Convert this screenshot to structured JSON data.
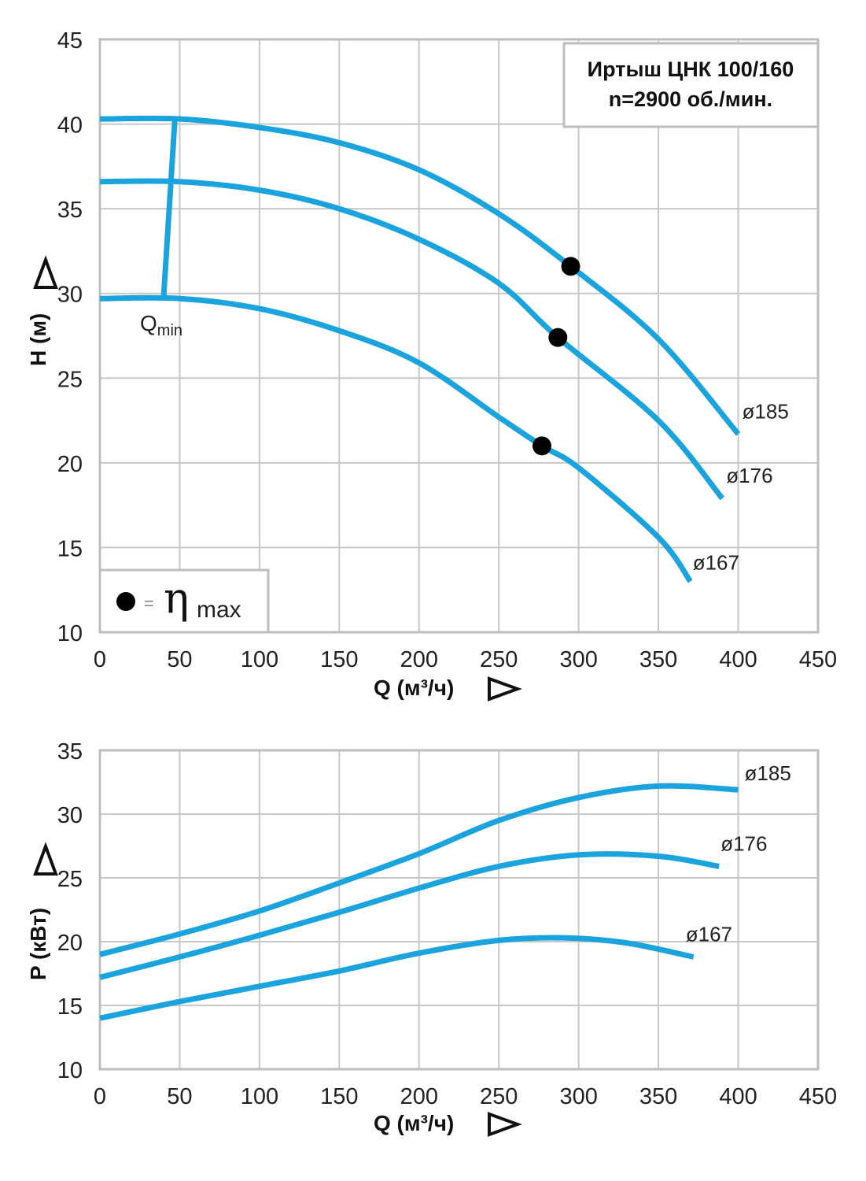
{
  "colors": {
    "curve": "#1aa3dd",
    "grid": "#c8c8c8",
    "frame": "#bdbdbd",
    "marker": "#000000"
  },
  "chart_data": [
    {
      "type": "line",
      "title": "Иртыш ЦНК 100/160",
      "subtitle": "n=2900 об./мин.",
      "xlabel": "Q (м³/ч)",
      "ylabel": "H (м)",
      "xlim": [
        0,
        450
      ],
      "ylim": [
        10,
        45
      ],
      "x_ticks": [
        "0",
        "50",
        "100",
        "150",
        "200",
        "250",
        "300",
        "350",
        "400",
        "450"
      ],
      "y_ticks": [
        "10",
        "15",
        "20",
        "25",
        "30",
        "35",
        "40",
        "45"
      ],
      "grid": true,
      "series": [
        {
          "name": "ø185",
          "points": [
            [
              0,
              40.3
            ],
            [
              50,
              40.3
            ],
            [
              100,
              39.8
            ],
            [
              150,
              38.9
            ],
            [
              200,
              37.3
            ],
            [
              250,
              34.7
            ],
            [
              295,
              31.6
            ],
            [
              350,
              27.3
            ],
            [
              400,
              21.7
            ]
          ]
        },
        {
          "name": "ø176",
          "points": [
            [
              0,
              36.6
            ],
            [
              50,
              36.6
            ],
            [
              100,
              36.1
            ],
            [
              150,
              35
            ],
            [
              200,
              33.2
            ],
            [
              250,
              30.6
            ],
            [
              287,
              27.4
            ],
            [
              350,
              22.5
            ],
            [
              390,
              17.9
            ]
          ]
        },
        {
          "name": "ø167",
          "points": [
            [
              0,
              29.7
            ],
            [
              50,
              29.7
            ],
            [
              100,
              29.1
            ],
            [
              150,
              27.8
            ],
            [
              200,
              25.9
            ],
            [
              250,
              22.7
            ],
            [
              277,
              21
            ],
            [
              300,
              19.7
            ],
            [
              350,
              15.6
            ],
            [
              370,
              13
            ]
          ]
        }
      ],
      "efficiency_max_points": [
        [
          295,
          31.6
        ],
        [
          287,
          27.4
        ],
        [
          277,
          21
        ]
      ],
      "qmin_line": {
        "label_main": "Q",
        "label_sub": "min",
        "points": [
          [
            40,
            29.9
          ],
          [
            47,
            40.3
          ]
        ]
      },
      "legend": {
        "symbol": "●",
        "equals": "=",
        "eta": "η",
        "sub": "max"
      }
    },
    {
      "type": "line",
      "xlabel": "Q (м³/ч)",
      "ylabel": "P (кВт)",
      "xlim": [
        0,
        450
      ],
      "ylim": [
        10,
        35
      ],
      "x_ticks": [
        "0",
        "50",
        "100",
        "150",
        "200",
        "250",
        "300",
        "350",
        "400",
        "450"
      ],
      "y_ticks": [
        "10",
        "15",
        "20",
        "25",
        "30",
        "35"
      ],
      "grid": true,
      "series": [
        {
          "name": "ø185",
          "points": [
            [
              0,
              19
            ],
            [
              50,
              20.6
            ],
            [
              100,
              22.4
            ],
            [
              150,
              24.6
            ],
            [
              200,
              26.9
            ],
            [
              250,
              29.5
            ],
            [
              300,
              31.3
            ],
            [
              350,
              32.2
            ],
            [
              400,
              31.9
            ]
          ]
        },
        {
          "name": "ø176",
          "points": [
            [
              0,
              17.2
            ],
            [
              50,
              18.8
            ],
            [
              100,
              20.5
            ],
            [
              150,
              22.3
            ],
            [
              200,
              24.2
            ],
            [
              250,
              25.9
            ],
            [
              300,
              26.8
            ],
            [
              350,
              26.7
            ],
            [
              388,
              25.9
            ]
          ]
        },
        {
          "name": "ø167",
          "points": [
            [
              0,
              14
            ],
            [
              50,
              15.3
            ],
            [
              100,
              16.5
            ],
            [
              150,
              17.7
            ],
            [
              200,
              19.1
            ],
            [
              250,
              20.1
            ],
            [
              290,
              20.3
            ],
            [
              330,
              19.9
            ],
            [
              372,
              18.8
            ]
          ]
        }
      ]
    }
  ]
}
